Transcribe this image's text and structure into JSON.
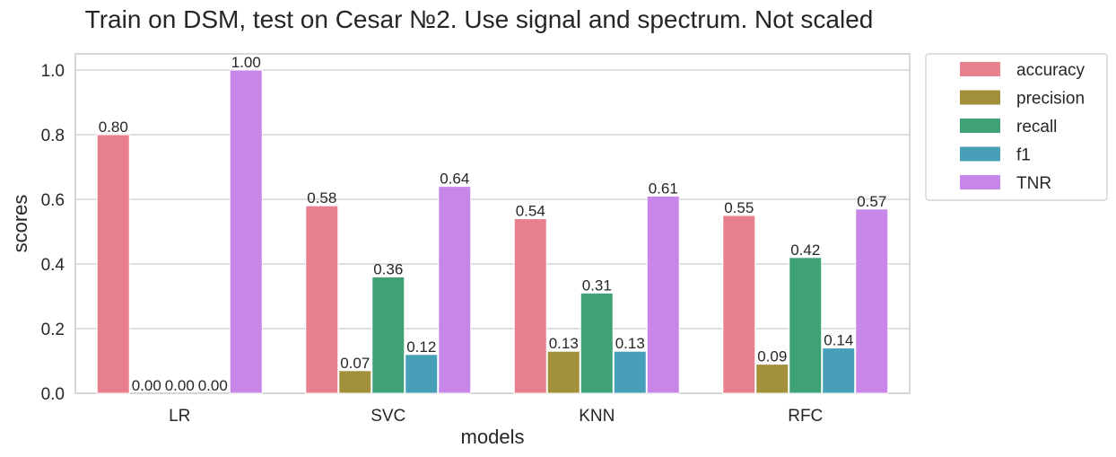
{
  "chart_data": {
    "type": "bar",
    "title": "Train on DSM, test on Cesar №2. Use signal and spectrum. Not scaled",
    "xlabel": "models",
    "ylabel": "scores",
    "categories": [
      "LR",
      "SVC",
      "KNN",
      "RFC"
    ],
    "ylim": [
      0,
      1.05
    ],
    "yticks": [
      "0.0",
      "0.2",
      "0.4",
      "0.6",
      "0.8",
      "1.0"
    ],
    "grid": true,
    "legend_position": "outside-top-right",
    "series": [
      {
        "name": "accuracy",
        "color": "#e8808f",
        "values": [
          0.8,
          0.58,
          0.54,
          0.55
        ],
        "labels": [
          "0.80",
          "0.58",
          "0.54",
          "0.55"
        ]
      },
      {
        "name": "precision",
        "color": "#a2913a",
        "values": [
          0.0,
          0.07,
          0.13,
          0.09
        ],
        "labels": [
          "0.00",
          "0.07",
          "0.13",
          "0.09"
        ]
      },
      {
        "name": "recall",
        "color": "#3fa276",
        "values": [
          0.0,
          0.36,
          0.31,
          0.42
        ],
        "labels": [
          "0.00",
          "0.36",
          "0.31",
          "0.42"
        ]
      },
      {
        "name": "f1",
        "color": "#479fb8",
        "values": [
          0.0,
          0.12,
          0.13,
          0.14
        ],
        "labels": [
          "0.00",
          "0.12",
          "0.13",
          "0.14"
        ]
      },
      {
        "name": "TNR",
        "color": "#c887e8",
        "values": [
          1.0,
          0.64,
          0.61,
          0.57
        ],
        "labels": [
          "1.00",
          "0.64",
          "0.61",
          "0.57"
        ]
      }
    ]
  }
}
